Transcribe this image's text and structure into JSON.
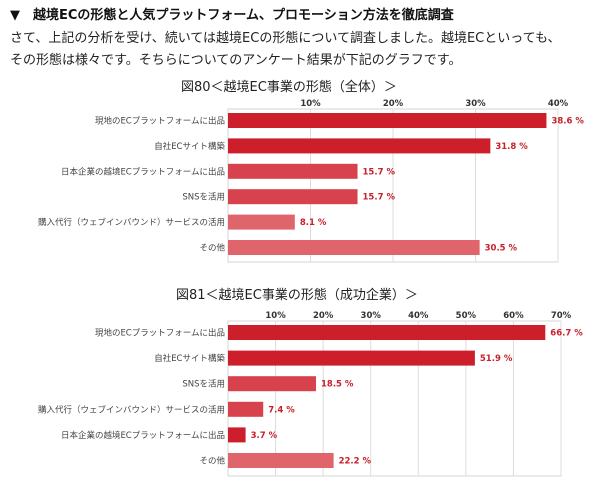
{
  "section_heading": "▼　越境ECの形態と人気プラットフォーム、プロモーション方法を徹底調査",
  "intro_line1": "さて、上記の分析を受け、続いては越境ECの形態について調査しました。越境ECといっても、",
  "intro_line2": "その形態は様々です。そちらについてのアンケート結果が下記のグラフです。",
  "chart_data": [
    {
      "type": "bar",
      "orientation": "horizontal",
      "title": "図80＜越境EC事業の形態（全体）＞",
      "categories": [
        "現地のECプラットフォームに出品",
        "自社ECサイト構築",
        "日本企業の越境ECプラットフォームに出品",
        "SNSを活用",
        "購入代行（ウェブインバウンド）サービスの活用",
        "その他"
      ],
      "values": [
        38.6,
        31.8,
        15.7,
        15.7,
        8.1,
        30.5
      ],
      "value_labels": [
        "38.6 %",
        "31.8 %",
        "15.7 %",
        "15.7 %",
        "8.1 %",
        "30.5 %"
      ],
      "bar_colors": [
        "#cc1f2b",
        "#cc1f2b",
        "#d8424d",
        "#d8424d",
        "#e0646c",
        "#e0646c"
      ],
      "xlim": [
        0,
        40
      ],
      "ticks": [
        "10%",
        "20%",
        "30%",
        "40%"
      ],
      "tick_values": [
        10,
        20,
        30,
        40
      ],
      "grid": true,
      "axis_position": "top"
    },
    {
      "type": "bar",
      "orientation": "horizontal",
      "title": "図81＜越境EC事業の形態（成功企業）＞",
      "categories": [
        "現地のECプラットフォームに出品",
        "自社ECサイト構築",
        "SNSを活用",
        "購入代行（ウェブインバウンド）サービスの活用",
        "日本企業の越境ECプラットフォームに出品",
        "その他"
      ],
      "values": [
        66.7,
        51.9,
        18.5,
        7.4,
        3.7,
        22.2
      ],
      "value_labels": [
        "66.7 %",
        "51.9 %",
        "18.5 %",
        "7.4 %",
        "3.7 %",
        "22.2 %"
      ],
      "bar_colors": [
        "#cc1f2b",
        "#cc1f2b",
        "#d8424d",
        "#d8424d",
        "#cc1f2b",
        "#e0646c"
      ],
      "xlim": [
        0,
        70
      ],
      "ticks": [
        "10%",
        "20%",
        "30%",
        "40%",
        "50%",
        "60%",
        "70%"
      ],
      "tick_values": [
        10,
        20,
        30,
        40,
        50,
        60,
        70
      ],
      "grid": true,
      "axis_position": "top"
    }
  ]
}
